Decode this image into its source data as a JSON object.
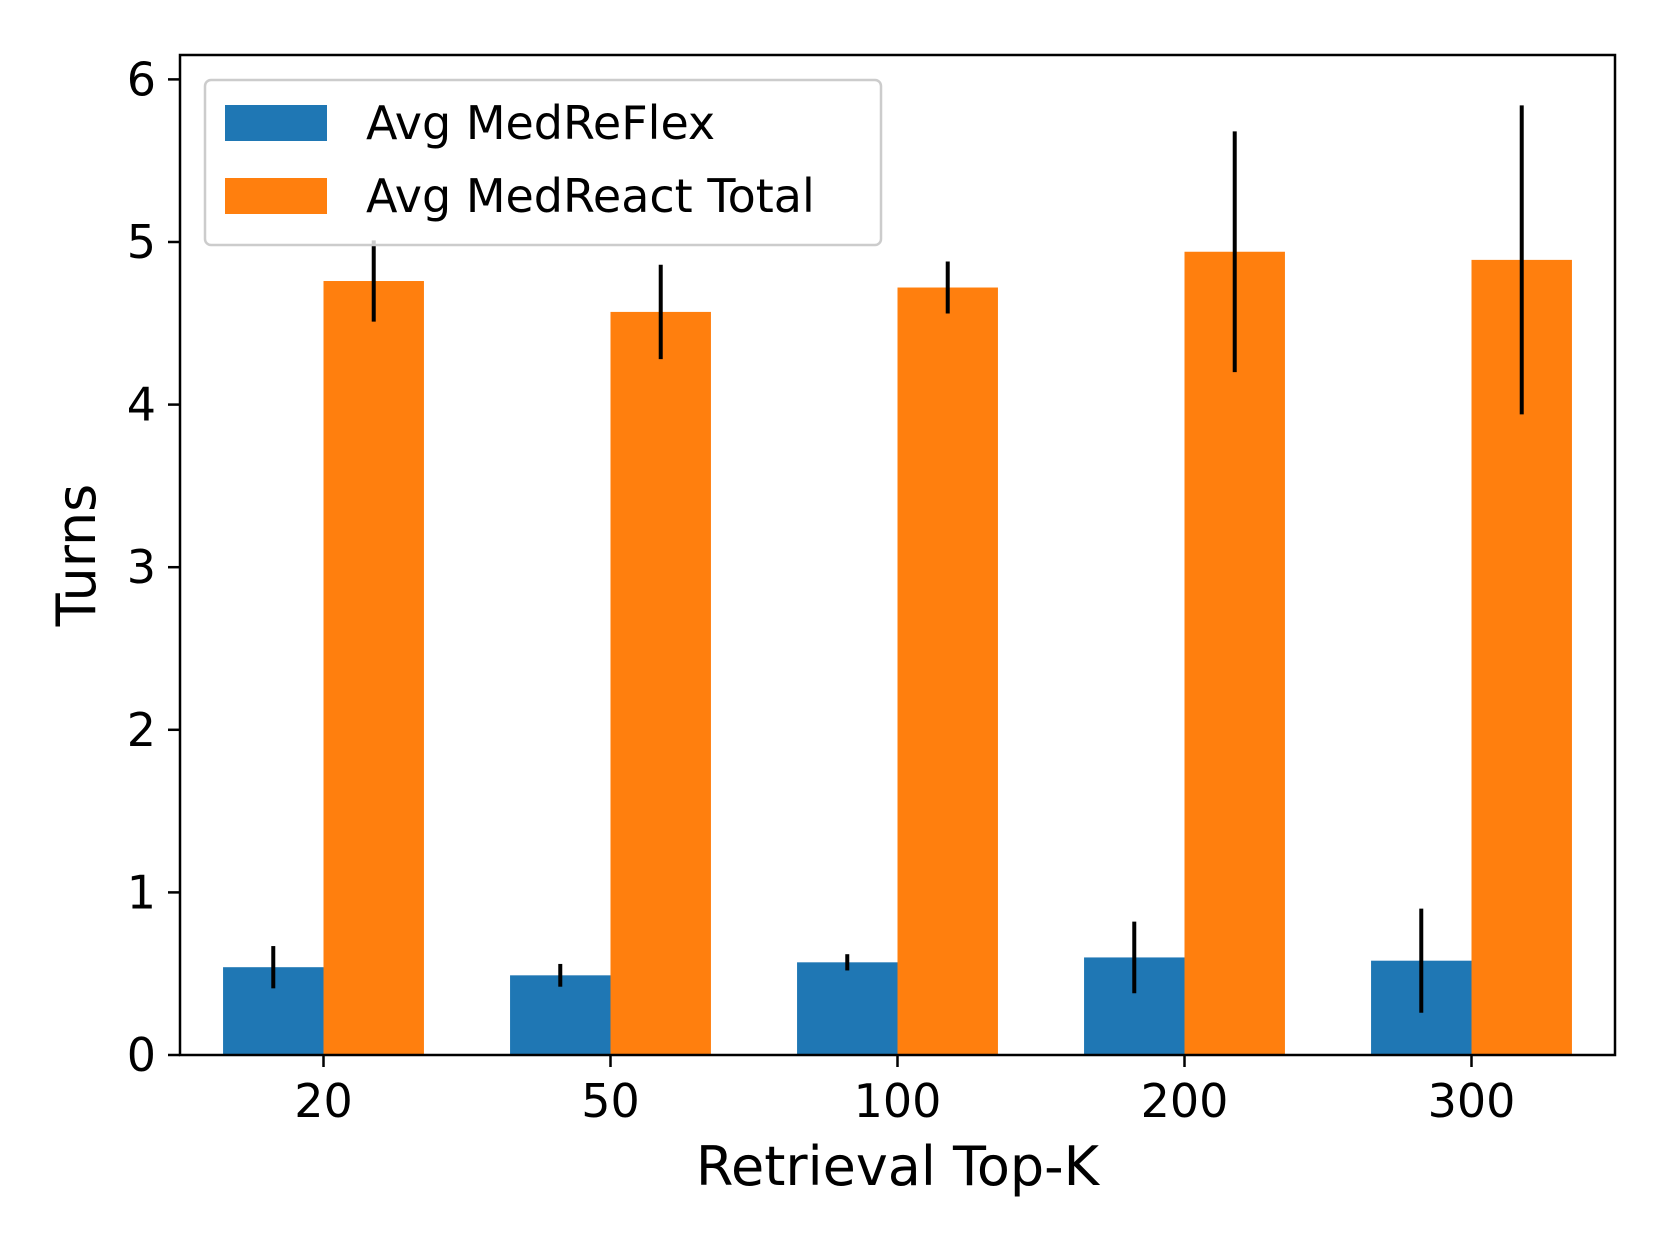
{
  "chart_data": {
    "type": "bar",
    "title": "",
    "xlabel": "Retrieval Top-K",
    "ylabel": "Turns",
    "categories": [
      "20",
      "50",
      "100",
      "200",
      "300"
    ],
    "ylim": [
      0,
      6.15
    ],
    "yticks": [
      "0",
      "1",
      "2",
      "3",
      "4",
      "5",
      "6"
    ],
    "legend_position": "top-left",
    "grid": false,
    "series": [
      {
        "name": "Avg MedReFlex",
        "color": "#1f77b4",
        "values": [
          0.54,
          0.49,
          0.57,
          0.6,
          0.58
        ],
        "errors": [
          0.13,
          0.07,
          0.05,
          0.22,
          0.32
        ]
      },
      {
        "name": "Avg MedReact Total",
        "color": "#ff7f0e",
        "values": [
          4.76,
          4.57,
          4.72,
          4.94,
          4.89
        ],
        "errors": [
          0.25,
          0.29,
          0.16,
          0.74,
          0.95
        ]
      }
    ]
  }
}
